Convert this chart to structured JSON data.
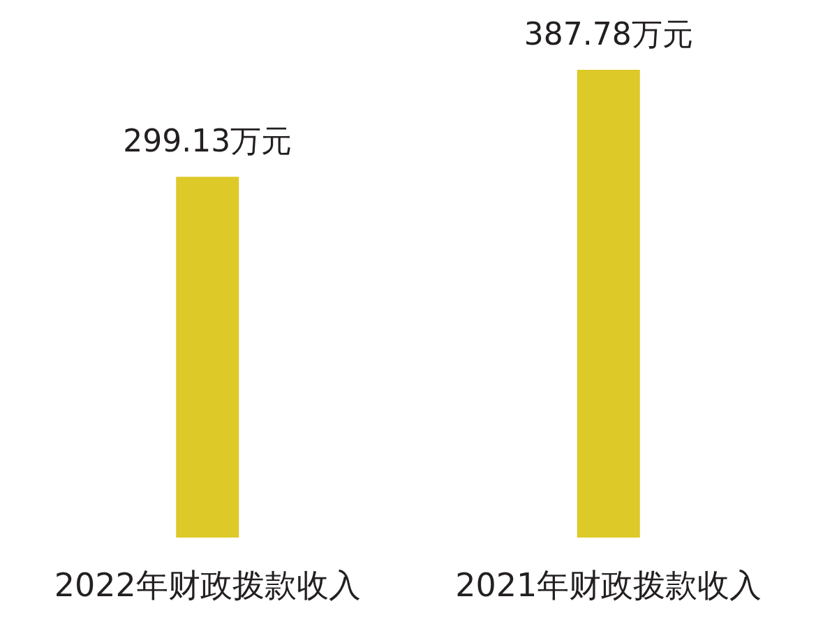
{
  "chart_data": {
    "type": "bar",
    "categories": [
      "2022年财政拨款收入",
      "2021年财政拨款收入"
    ],
    "values": [
      299.13,
      387.78
    ],
    "value_labels": [
      "299.13万元",
      "387.78万元"
    ],
    "color": "#ddc928"
  }
}
